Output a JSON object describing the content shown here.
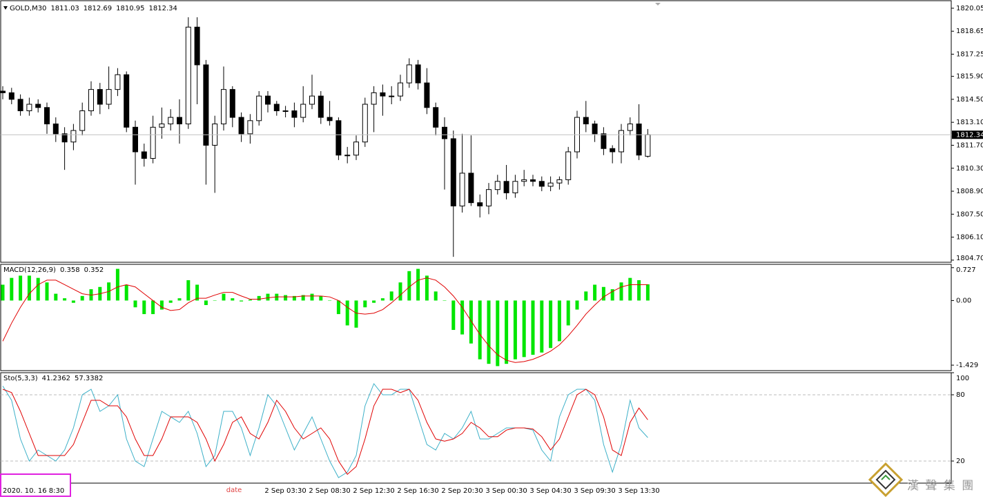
{
  "chart_data": [
    {
      "type": "candlestick",
      "title": "GOLD,M30",
      "up_color": "#ffffff",
      "down_color": "#000000",
      "price_line_color": "#c0c0c0",
      "categories": [
        null,
        null,
        null,
        null,
        null,
        null,
        null,
        null,
        null,
        null,
        null,
        null,
        null,
        null,
        null,
        null,
        null,
        null,
        null,
        null,
        null,
        null,
        null,
        null,
        null,
        null,
        null,
        null,
        null,
        null,
        null,
        null,
        "2 Sep 03:30",
        null,
        null,
        null,
        null,
        "2 Sep 08:30",
        null,
        null,
        null,
        null,
        "2 Sep 12:30",
        null,
        null,
        null,
        null,
        "2 Sep 16:30",
        null,
        null,
        null,
        null,
        "2 Sep 20:30",
        null,
        null,
        null,
        null,
        "3 Sep 00:30",
        null,
        null,
        null,
        null,
        "3 Sep 04:30",
        null,
        null,
        null,
        null,
        "3 Sep 09:30",
        null,
        null,
        null,
        null,
        "3 Sep 13:30",
        null
      ],
      "open": [
        1815.0,
        1814.9,
        1814.5,
        1813.8,
        1814.2,
        1814.0,
        1813.0,
        1812.4,
        1811.9,
        1812.6,
        1813.8,
        1815.1,
        1814.2,
        1815.1,
        1816.0,
        1812.8,
        1811.3,
        1810.9,
        1812.8,
        1813.0,
        1813.4,
        1813.0,
        1818.9,
        1816.6,
        1811.7,
        1813.0,
        1815.1,
        1813.4,
        1812.4,
        1813.2,
        1814.7,
        1814.2,
        1813.8,
        1813.8,
        1813.4,
        1814.2,
        1814.7,
        1813.4,
        1813.2,
        1811.1,
        1811.1,
        1811.9,
        1814.2,
        1814.9,
        1814.7,
        1814.7,
        1815.5,
        1816.6,
        1815.5,
        1814.0,
        1812.8,
        1812.1,
        1808.0,
        1810.0,
        1808.2,
        1808.0,
        1809.0,
        1809.5,
        1808.8,
        1809.5,
        1809.6,
        1809.5,
        1809.2,
        1809.4,
        1809.6,
        1811.3,
        1813.4,
        1813.0,
        1812.4,
        1811.5,
        1811.3,
        1812.6,
        1813.0,
        1811.03
      ],
      "high": [
        1815.3,
        1815.2,
        1814.8,
        1814.6,
        1814.5,
        1814.3,
        1813.4,
        1812.8,
        1813.0,
        1814.3,
        1815.6,
        1815.5,
        1816.5,
        1816.4,
        1816.2,
        1813.2,
        1811.8,
        1813.5,
        1814.0,
        1813.9,
        1814.5,
        1819.5,
        1819.5,
        1816.9,
        1813.5,
        1816.5,
        1815.3,
        1813.7,
        1813.6,
        1815.0,
        1815.0,
        1814.4,
        1814.1,
        1814.3,
        1815.3,
        1816.0,
        1815.0,
        1814.4,
        1813.4,
        1811.6,
        1812.3,
        1814.6,
        1815.3,
        1815.4,
        1815.3,
        1816.0,
        1817.0,
        1816.9,
        1816.4,
        1814.3,
        1813.4,
        1812.6,
        1812.4,
        1812.3,
        1808.7,
        1809.4,
        1809.9,
        1810.5,
        1809.9,
        1810.2,
        1809.9,
        1809.8,
        1809.8,
        1809.8,
        1811.6,
        1813.8,
        1814.4,
        1813.2,
        1812.8,
        1811.7,
        1813.0,
        1813.4,
        1814.2,
        1812.69
      ],
      "low": [
        1814.5,
        1814.2,
        1813.5,
        1813.5,
        1813.7,
        1812.4,
        1811.9,
        1810.2,
        1811.4,
        1812.3,
        1813.5,
        1813.6,
        1813.9,
        1814.7,
        1812.5,
        1809.3,
        1810.4,
        1810.6,
        1812.1,
        1812.6,
        1811.8,
        1812.7,
        1814.2,
        1809.3,
        1808.8,
        1812.6,
        1812.8,
        1811.9,
        1811.8,
        1812.9,
        1813.7,
        1813.5,
        1813.4,
        1812.8,
        1813.1,
        1813.9,
        1813.0,
        1812.9,
        1810.8,
        1810.6,
        1810.8,
        1811.6,
        1812.5,
        1813.5,
        1814.2,
        1814.4,
        1815.2,
        1815.1,
        1813.6,
        1812.3,
        1809.0,
        1804.9,
        1807.6,
        1808.0,
        1807.3,
        1807.5,
        1808.7,
        1808.4,
        1808.5,
        1809.2,
        1809.2,
        1808.9,
        1808.9,
        1809.0,
        1809.3,
        1810.9,
        1812.5,
        1811.9,
        1811.1,
        1810.6,
        1810.6,
        1812.3,
        1810.8,
        1810.95
      ],
      "close": [
        1814.9,
        1814.5,
        1813.8,
        1814.2,
        1814.0,
        1813.0,
        1812.4,
        1811.9,
        1812.6,
        1813.8,
        1815.1,
        1814.2,
        1815.1,
        1816.0,
        1812.8,
        1811.3,
        1810.9,
        1812.8,
        1813.0,
        1813.4,
        1813.0,
        1818.9,
        1816.6,
        1811.7,
        1813.0,
        1815.1,
        1813.4,
        1812.4,
        1813.2,
        1814.7,
        1814.2,
        1813.8,
        1813.8,
        1813.4,
        1814.2,
        1814.7,
        1813.4,
        1813.2,
        1811.1,
        1811.1,
        1811.9,
        1814.2,
        1814.9,
        1814.7,
        1814.7,
        1815.5,
        1816.6,
        1815.5,
        1814.0,
        1812.8,
        1812.1,
        1808.0,
        1810.0,
        1808.2,
        1808.0,
        1809.0,
        1809.5,
        1808.8,
        1809.5,
        1809.6,
        1809.5,
        1809.2,
        1809.4,
        1809.6,
        1811.3,
        1813.4,
        1813.0,
        1812.4,
        1811.5,
        1811.3,
        1812.6,
        1813.0,
        1811.1,
        1812.34
      ],
      "ylim": [
        1804.57,
        1820.51
      ],
      "yticks": [
        1820.05,
        1818.65,
        1817.25,
        {
          "value": 1815.9,
          "label": "1815.90"
        },
        {
          "value": 1814.5,
          "label": "1814.50"
        },
        {
          "value": 1813.1,
          "label": "1813.10"
        },
        {
          "value": 1811.7,
          "label": "1811.70"
        },
        {
          "value": 1810.3,
          "label": "1810.30"
        },
        {
          "value": 1808.9,
          "label": "1808.90"
        },
        {
          "value": 1807.5,
          "label": "1807.50"
        },
        {
          "value": 1806.1,
          "label": "1806.10"
        },
        {
          "value": 1804.7,
          "label": "1804.70"
        }
      ]
    },
    {
      "type": "bar",
      "title": "MACD(12,26,9)",
      "series": [
        {
          "type": "bar",
          "color": "#00e600",
          "values": [
            0.35,
            0.5,
            0.55,
            0.55,
            0.5,
            0.4,
            0.15,
            0.05,
            -0.05,
            0.1,
            0.25,
            0.3,
            0.4,
            0.7,
            0.35,
            -0.15,
            -0.3,
            -0.3,
            -0.2,
            -0.05,
            0.05,
            0.45,
            0.35,
            -0.1,
            0.0,
            0.15,
            0.05,
            -0.02,
            0.02,
            0.1,
            0.15,
            0.15,
            0.12,
            0.1,
            0.12,
            0.15,
            0.1,
            0.0,
            -0.3,
            -0.55,
            -0.6,
            -0.15,
            -0.05,
            0.05,
            0.2,
            0.4,
            0.65,
            0.7,
            0.55,
            0.2,
            0.0,
            -0.65,
            -0.75,
            -0.95,
            -1.3,
            -1.4,
            -1.45,
            -1.4,
            -1.3,
            -1.25,
            -1.2,
            -1.15,
            -1.05,
            -0.9,
            -0.55,
            -0.2,
            0.2,
            0.35,
            0.3,
            0.25,
            0.4,
            0.5,
            0.45,
            0.358
          ]
        },
        {
          "type": "line",
          "color": "#e00000",
          "values": [
            -0.9,
            -0.5,
            -0.15,
            0.15,
            0.35,
            0.45,
            0.45,
            0.35,
            0.25,
            0.15,
            0.12,
            0.15,
            0.2,
            0.3,
            0.35,
            0.3,
            0.15,
            0.0,
            -0.15,
            -0.22,
            -0.2,
            -0.05,
            0.05,
            0.05,
            0.12,
            0.18,
            0.18,
            0.1,
            0.03,
            0.03,
            0.06,
            0.08,
            0.08,
            0.08,
            0.1,
            0.1,
            0.1,
            0.08,
            0.0,
            -0.15,
            -0.28,
            -0.3,
            -0.28,
            -0.2,
            -0.05,
            0.12,
            0.3,
            0.45,
            0.5,
            0.45,
            0.3,
            0.1,
            -0.15,
            -0.45,
            -0.75,
            -1.0,
            -1.2,
            -1.32,
            -1.37,
            -1.35,
            -1.3,
            -1.22,
            -1.12,
            -0.98,
            -0.78,
            -0.55,
            -0.3,
            -0.1,
            0.08,
            0.2,
            0.3,
            0.35,
            0.35,
            0.352
          ]
        }
      ],
      "ylim": [
        -1.55,
        0.8
      ],
      "yticks": [
        0.727,
        {
          "value": 0,
          "label": "0.00"
        },
        -1.429
      ]
    },
    {
      "type": "line",
      "title": "Sto(5,3,3)",
      "grid": "dashed",
      "series": [
        {
          "type": "line",
          "color": "#3cb0c8",
          "values": [
            88,
            75,
            40,
            20,
            30,
            25,
            20,
            30,
            50,
            80,
            85,
            65,
            70,
            80,
            40,
            20,
            15,
            40,
            65,
            60,
            55,
            65,
            45,
            15,
            25,
            65,
            65,
            50,
            25,
            50,
            80,
            70,
            50,
            30,
            45,
            60,
            40,
            20,
            5,
            10,
            25,
            70,
            90,
            80,
            80,
            85,
            85,
            60,
            35,
            30,
            45,
            40,
            50,
            65,
            40,
            40,
            45,
            50,
            50,
            50,
            48,
            30,
            20,
            60,
            80,
            85,
            85,
            75,
            35,
            10,
            35,
            75,
            50,
            41.2362
          ]
        },
        {
          "type": "line",
          "color": "#e00000",
          "values": [
            85,
            82,
            65,
            45,
            25,
            25,
            25,
            25,
            35,
            55,
            75,
            75,
            70,
            70,
            60,
            40,
            25,
            25,
            40,
            60,
            60,
            60,
            55,
            40,
            20,
            35,
            55,
            60,
            45,
            40,
            55,
            75,
            65,
            50,
            40,
            45,
            50,
            40,
            20,
            8,
            15,
            40,
            70,
            85,
            85,
            82,
            85,
            75,
            55,
            40,
            38,
            40,
            45,
            55,
            50,
            42,
            42,
            48,
            50,
            50,
            49,
            42,
            30,
            40,
            60,
            80,
            85,
            80,
            60,
            30,
            25,
            55,
            68,
            57.3382
          ]
        }
      ],
      "ylim": [
        0,
        100
      ],
      "yticks": [
        100,
        80,
        20
      ]
    }
  ],
  "overlay": {
    "date_label": "date",
    "date_value": "2020. 10. 16 8:30"
  },
  "watermark": "漢 聲 集 團"
}
